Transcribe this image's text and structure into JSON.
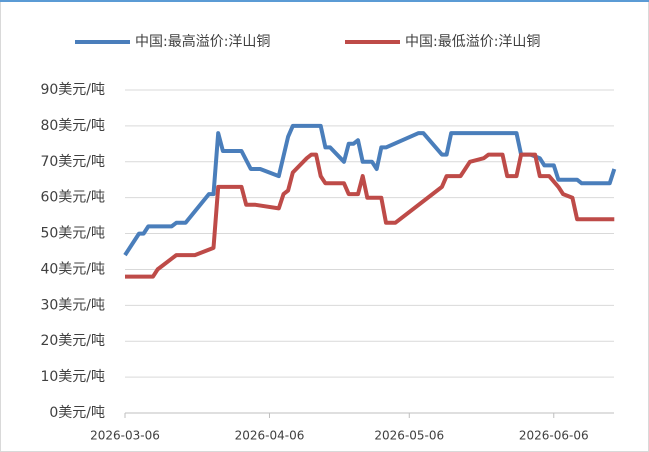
{
  "chart_data": {
    "type": "line",
    "series": [
      {
        "name": "中国:最高溢价:洋山铜",
        "color": "#4a7ebb",
        "x": [
          "2026-03-06",
          "2026-03-09",
          "2026-03-10",
          "2026-03-11",
          "2026-03-16",
          "2026-03-17",
          "2026-03-19",
          "2026-03-24",
          "2026-03-25",
          "2026-03-26",
          "2026-03-27",
          "2026-03-31",
          "2026-04-02",
          "2026-04-04",
          "2026-04-08",
          "2026-04-10",
          "2026-04-11",
          "2026-04-17",
          "2026-04-18",
          "2026-04-19",
          "2026-04-22",
          "2026-04-23",
          "2026-04-24",
          "2026-04-25",
          "2026-04-26",
          "2026-04-28",
          "2026-04-29",
          "2026-04-30",
          "2026-05-01",
          "2026-05-08",
          "2026-05-09",
          "2026-05-13",
          "2026-05-14",
          "2026-05-15",
          "2026-05-28",
          "2026-05-29",
          "2026-05-30",
          "2026-06-01",
          "2026-06-03",
          "2026-06-04",
          "2026-06-06",
          "2026-06-07",
          "2026-06-11",
          "2026-06-12",
          "2026-06-18",
          "2026-06-19"
        ],
        "values": [
          44,
          50,
          50,
          52,
          52,
          53,
          53,
          61,
          61,
          78,
          73,
          73,
          68,
          68,
          66,
          77,
          80,
          80,
          74,
          74,
          70,
          75,
          75,
          76,
          70,
          70,
          68,
          74,
          74,
          78,
          78,
          72,
          72,
          78,
          78,
          78,
          72,
          72,
          71,
          69,
          69,
          65,
          65,
          64,
          64,
          68
        ]
      },
      {
        "name": "中国:最低溢价:洋山铜",
        "color": "#be4b48",
        "x": [
          "2026-03-06",
          "2026-03-12",
          "2026-03-13",
          "2026-03-16",
          "2026-03-17",
          "2026-03-21",
          "2026-03-23",
          "2026-03-25",
          "2026-03-26",
          "2026-03-31",
          "2026-04-01",
          "2026-04-03",
          "2026-04-08",
          "2026-04-09",
          "2026-04-10",
          "2026-04-11",
          "2026-04-14",
          "2026-04-15",
          "2026-04-16",
          "2026-04-17",
          "2026-04-18",
          "2026-04-22",
          "2026-04-23",
          "2026-04-25",
          "2026-04-26",
          "2026-04-27",
          "2026-04-30",
          "2026-05-01",
          "2026-05-03",
          "2026-05-12",
          "2026-05-13",
          "2026-05-14",
          "2026-05-17",
          "2026-05-19",
          "2026-05-22",
          "2026-05-23",
          "2026-05-26",
          "2026-05-27",
          "2026-05-29",
          "2026-05-30",
          "2026-06-02",
          "2026-06-03",
          "2026-06-05",
          "2026-06-07",
          "2026-06-08",
          "2026-06-10",
          "2026-06-11",
          "2026-06-19"
        ],
        "values": [
          38,
          38,
          40,
          43,
          44,
          44,
          45,
          46,
          63,
          63,
          58,
          58,
          57,
          61,
          62,
          67,
          71,
          72,
          72,
          66,
          64,
          64,
          61,
          61,
          66,
          60,
          60,
          53,
          53,
          62,
          63,
          66,
          66,
          70,
          71,
          72,
          72,
          66,
          66,
          72,
          72,
          66,
          66,
          63,
          61,
          60,
          54,
          54
        ]
      }
    ],
    "xlim": [
      "2026-03-06",
      "2026-06-20"
    ],
    "xticks": [
      "2026-03-06",
      "2026-04-06",
      "2026-05-06",
      "2026-06-06"
    ],
    "ylim": [
      0,
      90
    ],
    "yticks": [
      {
        "value": 0,
        "label": "0美元/吨"
      },
      {
        "value": 10,
        "label": "10美元/吨"
      },
      {
        "value": 20,
        "label": "20美元/吨"
      },
      {
        "value": 30,
        "label": "30美元/吨"
      },
      {
        "value": 40,
        "label": "40美元/吨"
      },
      {
        "value": 50,
        "label": "50美元/吨"
      },
      {
        "value": 60,
        "label": "60美元/吨"
      },
      {
        "value": 70,
        "label": "70美元/吨"
      },
      {
        "value": 80,
        "label": "80美元/吨"
      },
      {
        "value": 90,
        "label": "90美元/吨"
      }
    ],
    "grid": true,
    "legend": "top"
  }
}
